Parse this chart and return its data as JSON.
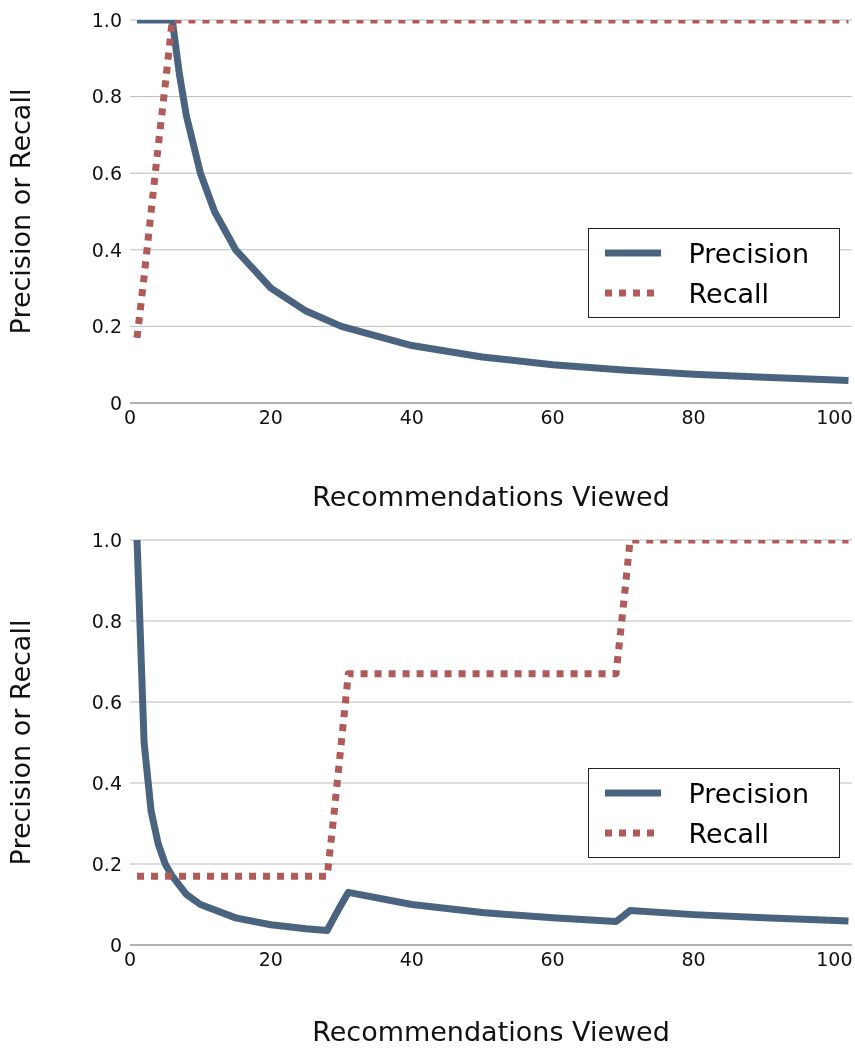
{
  "chart_data": [
    {
      "type": "line",
      "xlabel": "Recommendations Viewed",
      "ylabel": "Precision or Recall",
      "xlim": [
        0,
        102.5
      ],
      "xticks": [
        0,
        20,
        40,
        60,
        80,
        100
      ],
      "ylim": [
        0,
        1
      ],
      "yticks": [
        0,
        0.2,
        0.4,
        0.6,
        0.8,
        {
          "value": 1,
          "label": "1.0"
        }
      ],
      "grid": "y",
      "legend": "right",
      "marker": "none",
      "series": [
        {
          "name": "Precision",
          "color": "#4a6480",
          "line_style": "solid",
          "x": [
            1,
            2,
            3,
            4,
            5,
            6,
            7,
            8,
            10,
            12,
            15,
            20,
            25,
            30,
            40,
            50,
            60,
            70,
            80,
            90,
            102
          ],
          "values": [
            1,
            1,
            1,
            1,
            1,
            1,
            0.86,
            0.75,
            0.6,
            0.5,
            0.4,
            0.3,
            0.24,
            0.2,
            0.15,
            0.12,
            0.1,
            0.086,
            0.075,
            0.067,
            0.059
          ]
        },
        {
          "name": "Recall",
          "color": "#b05a5a",
          "line_style": "dotted",
          "x": [
            1,
            2,
            3,
            4,
            5,
            6,
            102
          ],
          "values": [
            0.17,
            0.33,
            0.5,
            0.67,
            0.83,
            1,
            1
          ]
        }
      ]
    },
    {
      "type": "line",
      "xlabel": "Recommendations Viewed",
      "ylabel": "Precision or Recall",
      "xlim": [
        0,
        102.5
      ],
      "xticks": [
        0,
        20,
        40,
        60,
        80,
        100
      ],
      "ylim": [
        0,
        1
      ],
      "yticks": [
        0,
        0.2,
        0.4,
        0.6,
        0.8,
        {
          "value": 1,
          "label": "1.0"
        }
      ],
      "grid": "y",
      "legend": "bottom right",
      "marker": "none",
      "series": [
        {
          "name": "Precision",
          "color": "#4a6480",
          "line_style": "solid",
          "x": [
            1,
            2,
            3,
            4,
            5,
            6,
            8,
            10,
            15,
            20,
            25,
            28,
            29,
            30,
            31,
            40,
            50,
            60,
            69,
            70,
            71,
            80,
            90,
            102
          ],
          "values": [
            1,
            0.5,
            0.33,
            0.25,
            0.2,
            0.17,
            0.125,
            0.1,
            0.067,
            0.05,
            0.04,
            0.036,
            0.069,
            0.1,
            0.13,
            0.1,
            0.08,
            0.067,
            0.058,
            0.071,
            0.085,
            0.075,
            0.067,
            0.059
          ]
        },
        {
          "name": "Recall",
          "color": "#b05a5a",
          "line_style": "dotted",
          "x": [
            1,
            28,
            29,
            30,
            31,
            69,
            70,
            71,
            102
          ],
          "values": [
            0.17,
            0.17,
            0.33,
            0.5,
            0.67,
            0.67,
            0.83,
            1,
            1
          ]
        }
      ]
    }
  ]
}
